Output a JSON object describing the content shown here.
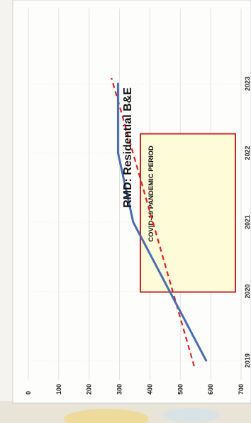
{
  "chart_data": {
    "type": "line",
    "title": "RMD: Residential B&E",
    "x": [
      "2019",
      "2020",
      "2021",
      "2022",
      "2023"
    ],
    "y_ticks": [
      "0",
      "100",
      "200",
      "300",
      "400",
      "500",
      "600",
      "700"
    ],
    "ylim": [
      0,
      700
    ],
    "grid": true,
    "series": [
      {
        "values": [
          585,
          465,
          345,
          295,
          295
        ],
        "color": "#4a6fb0",
        "style": "solid"
      }
    ],
    "trendline": {
      "values": [
        555,
        480,
        405,
        330,
        255
      ],
      "color": "#e02020",
      "style": "dashed"
    },
    "annotations": [
      {
        "text": "COVID-19 PANDEMIC PERIOD",
        "x_start": 2020,
        "x_end": 2022,
        "fill": "#fdfbd8",
        "border": "#c62828"
      }
    ]
  }
}
